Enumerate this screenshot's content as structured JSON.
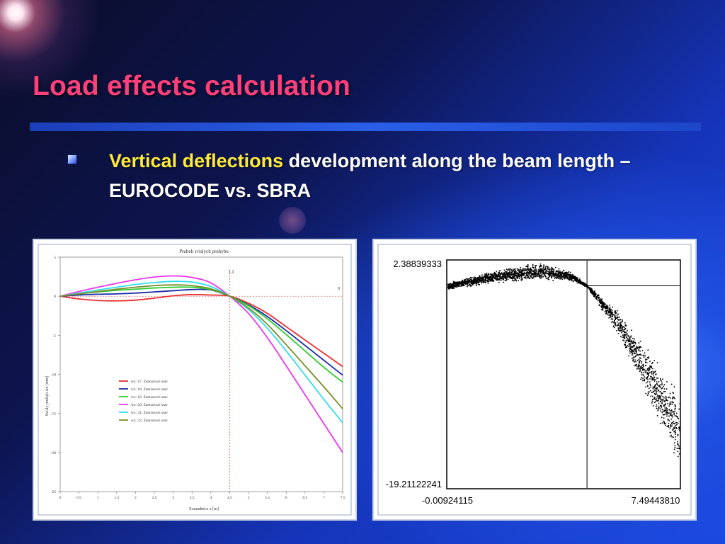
{
  "slide": {
    "title": "Load effects calculation",
    "bullet_highlight": "Vertical deflections",
    "bullet_rest": " development along the beam length – EUROCODE vs. SBRA",
    "colors": {
      "title": "#ff3f7a",
      "highlight": "#ffeb3b",
      "text": "#ffffff",
      "rule": "#2a5fe8"
    }
  },
  "chart_data": [
    {
      "type": "line",
      "title": "Prubeh svislych pruhybu",
      "xlabel": "Souradnice x [m]",
      "ylabel": "Svisly pruhyb wz [mm]",
      "xlim": [
        0,
        7.5
      ],
      "ylim": [
        -25,
        5
      ],
      "x_ticks": [
        "0",
        "0.5",
        "1",
        "1.5",
        "2",
        "2.5",
        "3",
        "3.5",
        "4",
        "4.5",
        "5",
        "5.5",
        "6",
        "6.5",
        "7",
        "7.5"
      ],
      "y_ticks": [
        "5",
        "0",
        "-5",
        "-10",
        "-15",
        "-20",
        "-25"
      ],
      "marker_label": "L1",
      "marker_x": 4.5,
      "right_label": "0",
      "legend_position": "left-middle",
      "x": [
        0,
        0.5,
        1,
        1.5,
        2,
        2.5,
        3,
        3.5,
        4,
        4.5,
        5,
        5.5,
        6,
        6.5,
        7,
        7.5
      ],
      "series": [
        {
          "name": "wz: 17. Zatezovaci stav",
          "color": "#e83030",
          "values": [
            0,
            -0.35,
            -0.55,
            -0.6,
            -0.5,
            -0.25,
            0.05,
            0.2,
            0.15,
            0,
            -0.9,
            -2.2,
            -3.9,
            -5.6,
            -7.3,
            -9.0
          ]
        },
        {
          "name": "wz: 18. Zatezovaci stav",
          "color": "#1a2aa8",
          "values": [
            0,
            0.15,
            0.25,
            0.3,
            0.4,
            0.55,
            0.7,
            0.85,
            0.8,
            0,
            -1.1,
            -2.6,
            -4.4,
            -6.3,
            -8.2,
            -10.1
          ]
        },
        {
          "name": "wz: 19. Zatezovaci stav",
          "color": "#2ecc2e",
          "values": [
            0,
            0.3,
            0.55,
            0.75,
            0.9,
            1.05,
            1.15,
            1.15,
            0.85,
            0,
            -1.2,
            -2.9,
            -4.9,
            -7.0,
            -9.1,
            -11.0
          ]
        },
        {
          "name": "wz: 20. Zatezovaci stav",
          "color": "#ee33ee",
          "values": [
            0,
            0.6,
            1.15,
            1.65,
            2.1,
            2.45,
            2.6,
            2.4,
            1.7,
            0,
            -2.2,
            -5.3,
            -8.9,
            -12.6,
            -16.3,
            -20.0
          ]
        },
        {
          "name": "wz: 21. Zatezovaci stav",
          "color": "#33ddee",
          "values": [
            0,
            0.4,
            0.8,
            1.15,
            1.5,
            1.75,
            1.9,
            1.8,
            1.25,
            0,
            -1.7,
            -4.1,
            -7.0,
            -10.1,
            -13.2,
            -16.2
          ]
        },
        {
          "name": "wz: 22. Zatezovaci stav",
          "color": "#7a8f2a",
          "values": [
            0,
            0.3,
            0.6,
            0.9,
            1.15,
            1.35,
            1.45,
            1.35,
            0.95,
            0,
            -1.5,
            -3.6,
            -6.2,
            -8.9,
            -11.6,
            -14.4
          ]
        }
      ]
    },
    {
      "type": "scatter",
      "x_labels": [
        "-0.00924115",
        "7.49443810"
      ],
      "y_labels": [
        "2.38839333",
        "-19.21122241"
      ],
      "xlim": [
        -0.00924115,
        7.4944381
      ],
      "ylim": [
        -19.21122241,
        2.38839333
      ],
      "crosshair": {
        "x": 4.5,
        "y": 0
      },
      "band_center": [
        [
          -0.00924115,
          0
        ],
        [
          1.5,
          0.9
        ],
        [
          3,
          1.4
        ],
        [
          4,
          0.9
        ],
        [
          4.5,
          0
        ],
        [
          5.5,
          -3.5
        ],
        [
          6.5,
          -8.5
        ],
        [
          7.4944381,
          -14
        ]
      ],
      "band_halfwidth": [
        [
          -0.00924115,
          0.4
        ],
        [
          3,
          1.0
        ],
        [
          4.5,
          0.15
        ],
        [
          6,
          2.0
        ],
        [
          7.4944381,
          4.5
        ]
      ]
    }
  ]
}
